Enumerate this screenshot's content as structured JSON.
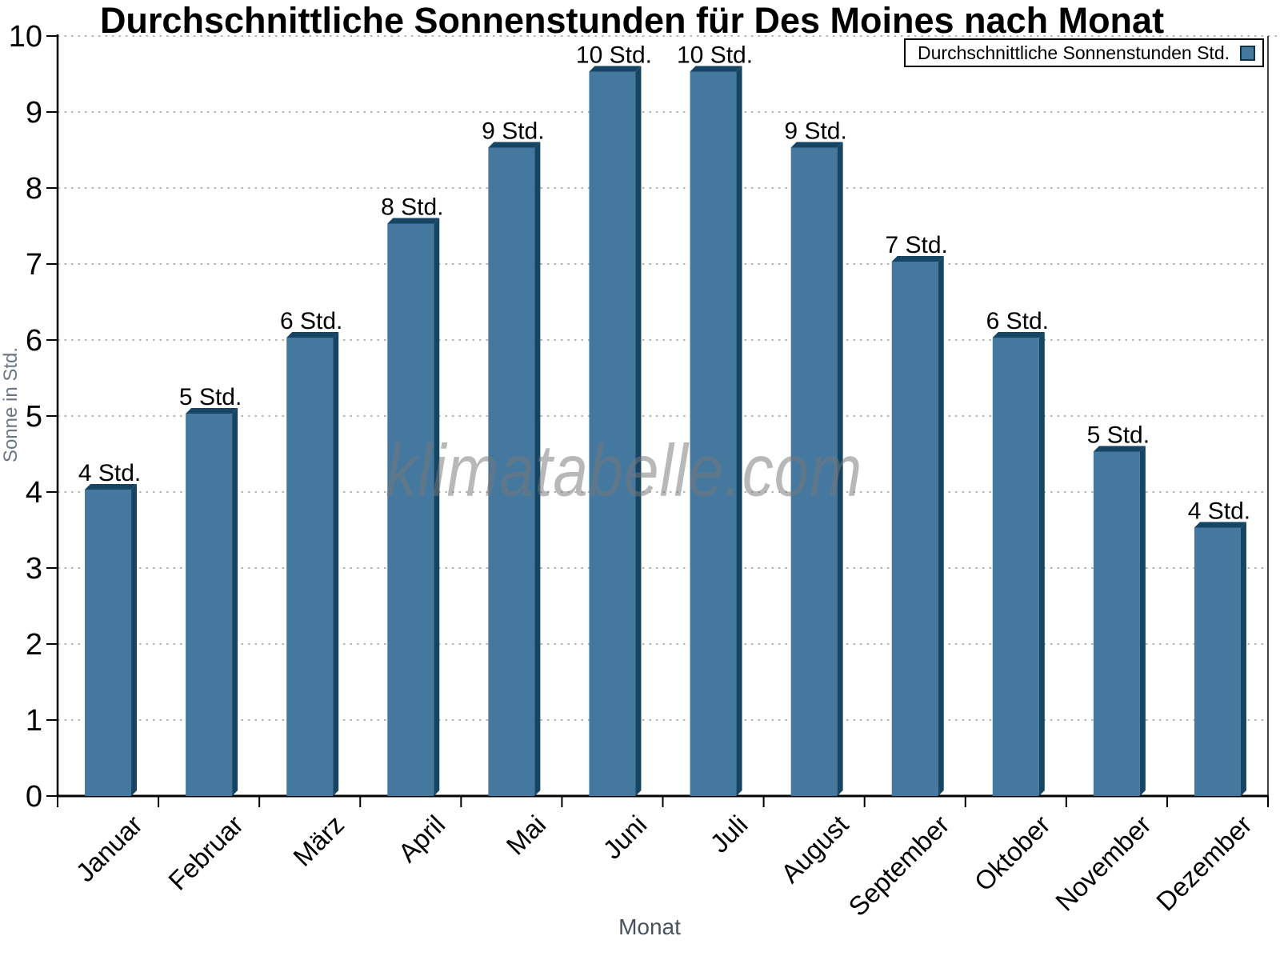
{
  "title": "Durchschnittliche Sonnenstunden für Des Moines nach Monat",
  "watermark": "klimatabelle.com",
  "legend": {
    "label": "Durchschnittliche Sonnenstunden Std.",
    "marker_color": "#44789f"
  },
  "y_axis": {
    "label": "Sonne in Std.",
    "ticks": [
      "0",
      "1",
      "2",
      "3",
      "4",
      "5",
      "6",
      "7",
      "8",
      "9",
      "10"
    ],
    "min": 0,
    "max": 10
  },
  "x_axis": {
    "label": "Monat"
  },
  "chart_data": {
    "type": "bar",
    "title": "Durchschnittliche Sonnenstunden für Des Moines nach Monat",
    "categories": [
      "Januar",
      "Februar",
      "März",
      "April",
      "Mai",
      "Juni",
      "Juli",
      "August",
      "September",
      "Oktober",
      "November",
      "Dezember"
    ],
    "values": [
      4,
      5,
      6,
      7.5,
      8.5,
      9.5,
      9.5,
      8.5,
      7,
      6,
      4.5,
      3.5
    ],
    "bar_labels": [
      "4 Std.",
      "5 Std.",
      "6 Std.",
      "8 Std.",
      "9 Std.",
      "10 Std.",
      "10 Std.",
      "9 Std.",
      "7 Std.",
      "6 Std.",
      "5 Std.",
      "4 Std."
    ],
    "xlabel": "Monat",
    "ylabel": "Sonne in Std.",
    "ylim": [
      0,
      10
    ],
    "grid": "horizontal-dotted",
    "legend_position": "top-right",
    "bar_color": "#44789f",
    "bar_shadow_color": "#164564",
    "gridline_color": "#b5b5b5",
    "axis_color": "#000000"
  }
}
